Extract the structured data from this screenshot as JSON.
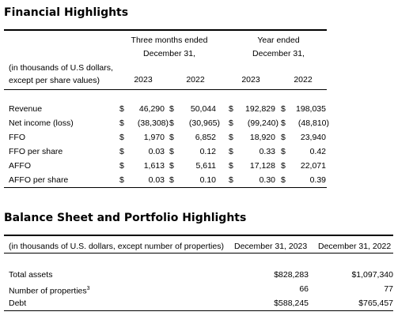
{
  "financial": {
    "title": "Financial Highlights",
    "units_note_line1": "(in thousands of U.S dollars,",
    "units_note_line2": "except per share values)",
    "group_three_months": {
      "line1": "Three months ended",
      "line2": "December 31,"
    },
    "group_year": {
      "line1": "Year ended",
      "line2": "December 31,"
    },
    "years": [
      "2023",
      "2022",
      "2023",
      "2022"
    ],
    "currency_symbol": "$",
    "rows": [
      {
        "label": "Revenue",
        "values": [
          "46,290",
          "50,044",
          "192,829",
          "198,035"
        ]
      },
      {
        "label": "Net income (loss)",
        "values": [
          "(38,308)",
          "(30,965)",
          "(99,240)",
          "(48,810)"
        ]
      },
      {
        "label": "FFO",
        "values": [
          "1,970",
          "6,852",
          "18,920",
          "23,940"
        ]
      },
      {
        "label": "FFO per share",
        "values": [
          "0.03",
          "0.12",
          "0.33",
          "0.42"
        ]
      },
      {
        "label": "AFFO",
        "values": [
          "1,613",
          "5,611",
          "17,128",
          "22,071"
        ]
      },
      {
        "label": "AFFO per share",
        "values": [
          "0.03",
          "0.10",
          "0.30",
          "0.39"
        ]
      }
    ]
  },
  "balance": {
    "title": "Balance Sheet and Portfolio Highlights",
    "units_note": "(in thousands of U.S. dollars, except number of properties)",
    "col_headers": [
      "December 31, 2023",
      "December 31, 2022"
    ],
    "rows": [
      {
        "label": "Total assets",
        "sup": "",
        "values": [
          "$828,283",
          "$1,097,340"
        ]
      },
      {
        "label": "Number of properties",
        "sup": "3",
        "values": [
          "66",
          "77"
        ]
      },
      {
        "label": "Debt",
        "sup": "",
        "values": [
          "$588,245",
          "$765,457"
        ]
      }
    ]
  }
}
